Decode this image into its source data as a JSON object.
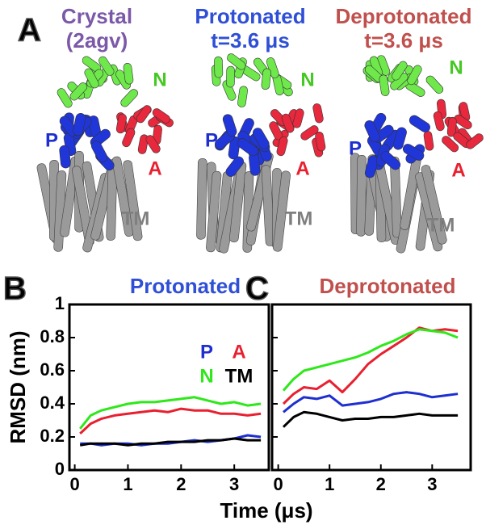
{
  "panel_labels": [
    "A",
    "B",
    "C"
  ],
  "structures": [
    {
      "title": "Crystal",
      "subtitle": "(2agv)",
      "color": "#7b59a8",
      "domains": [
        "N",
        "P",
        "A",
        "TM"
      ]
    },
    {
      "title": "Protonated",
      "subtitle": "t=3.6 μs",
      "color": "#2f4fd6",
      "domains": [
        "N",
        "P",
        "A",
        "TM"
      ]
    },
    {
      "title": "Deprotonated",
      "subtitle": "t=3.6 μs",
      "color": "#c0504d",
      "domains": [
        "N",
        "P",
        "A",
        "TM"
      ]
    }
  ],
  "domain_colors": [
    "#44c822",
    "#1e2fd0",
    "#e82030",
    "#7f7f7f"
  ],
  "x_label": "Time (μs)",
  "chart_data": [
    {
      "type": "line",
      "title": "Protonated",
      "title_color": "#2f4fd6",
      "y_label": "RMSD (nm)",
      "ytick_labels": true,
      "legend": true,
      "xlim": [
        -0.1,
        3.65
      ],
      "ylim": [
        0,
        1
      ],
      "xticks": [
        0,
        1,
        2,
        3
      ],
      "yticks": [
        0,
        0.2,
        0.4,
        0.6,
        0.8,
        1
      ],
      "x": [
        0.1,
        0.3,
        0.5,
        0.75,
        1,
        1.25,
        1.5,
        1.75,
        2,
        2.25,
        2.5,
        2.75,
        3,
        3.25,
        3.5
      ],
      "series": [
        {
          "name": "P",
          "color": "#1e2fd0",
          "values": [
            0.16,
            0.16,
            0.15,
            0.16,
            0.16,
            0.15,
            0.16,
            0.16,
            0.17,
            0.18,
            0.17,
            0.18,
            0.19,
            0.21,
            0.2
          ]
        },
        {
          "name": "A",
          "color": "#e82030",
          "values": [
            0.22,
            0.28,
            0.31,
            0.33,
            0.34,
            0.35,
            0.36,
            0.35,
            0.37,
            0.36,
            0.36,
            0.34,
            0.34,
            0.33,
            0.34
          ]
        },
        {
          "name": "N",
          "color": "#2ee81a",
          "values": [
            0.25,
            0.33,
            0.36,
            0.38,
            0.4,
            0.41,
            0.41,
            0.42,
            0.43,
            0.44,
            0.42,
            0.4,
            0.41,
            0.39,
            0.4
          ]
        },
        {
          "name": "TM",
          "color": "#000000",
          "values": [
            0.15,
            0.16,
            0.16,
            0.16,
            0.15,
            0.16,
            0.16,
            0.17,
            0.17,
            0.17,
            0.18,
            0.18,
            0.19,
            0.18,
            0.18
          ]
        }
      ]
    },
    {
      "type": "line",
      "title": "Deprotonated",
      "title_color": "#c0504d",
      "ytick_labels": false,
      "legend": false,
      "xlim": [
        -0.12,
        3.75
      ],
      "ylim": [
        0,
        1
      ],
      "xticks": [
        0,
        1,
        2,
        3
      ],
      "yticks": [
        0,
        0.2,
        0.4,
        0.6,
        0.8,
        1
      ],
      "x": [
        0.1,
        0.3,
        0.5,
        0.75,
        1,
        1.25,
        1.5,
        1.75,
        2,
        2.25,
        2.5,
        2.75,
        3,
        3.25,
        3.5
      ],
      "series": [
        {
          "name": "P",
          "color": "#1e2fd0",
          "values": [
            0.35,
            0.4,
            0.44,
            0.43,
            0.45,
            0.39,
            0.4,
            0.41,
            0.43,
            0.46,
            0.47,
            0.46,
            0.44,
            0.45,
            0.46
          ]
        },
        {
          "name": "A",
          "color": "#e82030",
          "values": [
            0.4,
            0.46,
            0.5,
            0.49,
            0.54,
            0.47,
            0.55,
            0.64,
            0.7,
            0.75,
            0.8,
            0.86,
            0.84,
            0.85,
            0.84
          ]
        },
        {
          "name": "N",
          "color": "#2ee81a",
          "values": [
            0.48,
            0.55,
            0.6,
            0.62,
            0.64,
            0.66,
            0.68,
            0.71,
            0.75,
            0.78,
            0.82,
            0.85,
            0.84,
            0.83,
            0.8
          ]
        },
        {
          "name": "TM",
          "color": "#000000",
          "values": [
            0.26,
            0.32,
            0.35,
            0.34,
            0.32,
            0.3,
            0.31,
            0.31,
            0.32,
            0.32,
            0.33,
            0.34,
            0.33,
            0.33,
            0.33
          ]
        }
      ]
    }
  ]
}
